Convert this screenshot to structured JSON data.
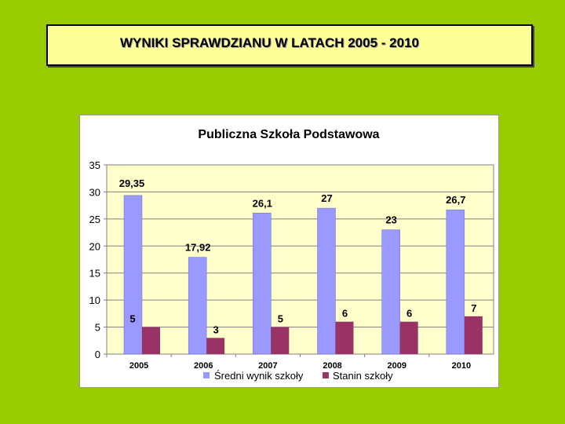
{
  "slide": {
    "title": "WYNIKI  SPRAWDZIANU W LATACH 2005 - 2010"
  },
  "colors": {
    "background": "#99cc00",
    "title_box": "#ffff99",
    "plot_area": "#ffffcc",
    "series_1": "#9999ff",
    "series_2": "#993366"
  },
  "chart_data": {
    "type": "bar",
    "title": "Publiczna Szkoła Podstawowa",
    "categories": [
      "2005",
      "2006",
      "2007",
      "2008",
      "2009",
      "2010"
    ],
    "series": [
      {
        "name": "Średni wynik szkoły",
        "values": [
          29.35,
          17.92,
          26.1,
          27,
          23,
          26.7
        ],
        "labels": [
          "29,35",
          "17,92",
          "26,1",
          "27",
          "23",
          "26,7"
        ],
        "color": "#9999ff"
      },
      {
        "name": "Stanin szkoły",
        "values": [
          5,
          3,
          5,
          6,
          6,
          7
        ],
        "labels": [
          "5",
          "3",
          "5",
          "6",
          "6",
          "7"
        ],
        "color": "#993366"
      }
    ],
    "ylim": [
      0,
      35
    ],
    "yticks": [
      "0",
      "5",
      "10",
      "15",
      "20",
      "25",
      "30",
      "35"
    ],
    "grid": true,
    "legend": "bottom"
  }
}
